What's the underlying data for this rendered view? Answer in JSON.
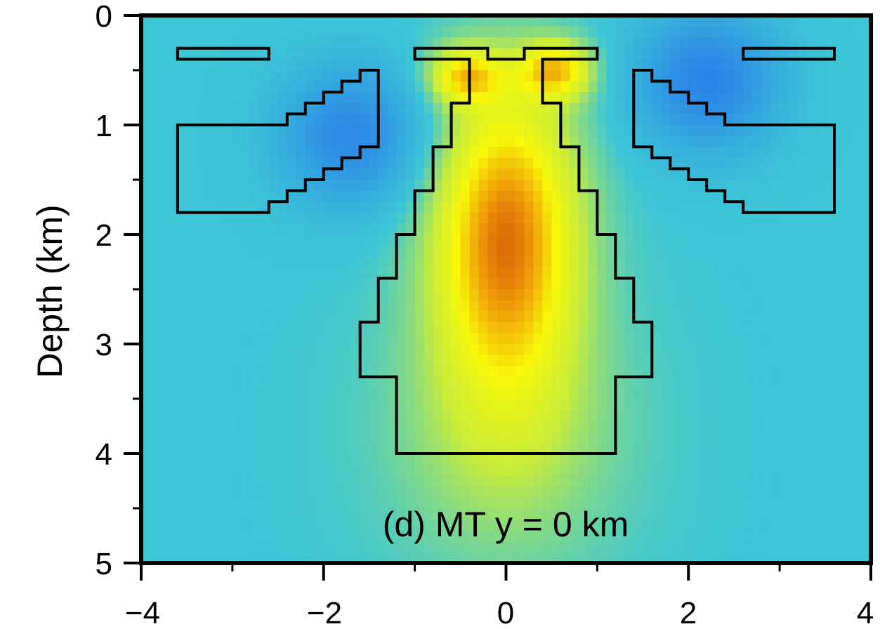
{
  "chart_data": {
    "type": "heatmap",
    "title": "",
    "annotation": "(d) MT y = 0 km",
    "xlabel": "",
    "ylabel": "Depth (km)",
    "xlim": [
      -4,
      4
    ],
    "ylim": [
      0,
      5
    ],
    "y_inverted": true,
    "x_ticks": [
      -4,
      -2,
      0,
      2,
      4
    ],
    "x_tick_labels": [
      "−4",
      "−2",
      "0",
      "2",
      "4"
    ],
    "y_ticks": [
      0,
      1,
      2,
      3,
      4,
      5
    ],
    "y_tick_labels": [
      "0",
      "1",
      "2",
      "3",
      "4",
      "5"
    ],
    "grid": false,
    "colors": {
      "background": "#3cc6d6",
      "low": "#2b84e8",
      "mid": "#c8ec3a",
      "high_yellow": "#f8f808",
      "high_orange": "#ef9a08",
      "peak": "#c84208",
      "outline": "#000000"
    },
    "anomalies": [
      {
        "name": "central-conductor",
        "x": 0.0,
        "y": 2.0,
        "sx": 0.55,
        "sy": 0.95,
        "value": 0.85
      },
      {
        "name": "shallow-left",
        "x": -0.45,
        "y": 0.55,
        "sx": 0.28,
        "sy": 0.18,
        "value": 0.55
      },
      {
        "name": "shallow-right",
        "x": 0.55,
        "y": 0.5,
        "sx": 0.28,
        "sy": 0.18,
        "value": 0.6
      },
      {
        "name": "deep-halo",
        "x": 0.0,
        "y": 3.8,
        "sx": 0.9,
        "sy": 0.9,
        "value": 0.25
      },
      {
        "name": "resistor-left",
        "x": -1.7,
        "y": 1.1,
        "sx": 0.55,
        "sy": 0.45,
        "value": -0.55
      },
      {
        "name": "resistor-right",
        "x": 2.2,
        "y": 0.6,
        "sx": 0.55,
        "sy": 0.45,
        "value": -0.6
      }
    ],
    "model_outlines": [
      {
        "name": "left-top-bar",
        "points": [
          [
            -3.6,
            0.3
          ],
          [
            -2.6,
            0.3
          ],
          [
            -2.6,
            0.4
          ],
          [
            -3.6,
            0.4
          ]
        ]
      },
      {
        "name": "right-top-bar",
        "points": [
          [
            2.6,
            0.3
          ],
          [
            3.6,
            0.3
          ],
          [
            3.6,
            0.4
          ],
          [
            2.6,
            0.4
          ]
        ]
      },
      {
        "name": "left-resistor",
        "points": [
          [
            -3.6,
            1.0
          ],
          [
            -2.4,
            1.0
          ],
          [
            -2.4,
            0.9
          ],
          [
            -2.2,
            0.9
          ],
          [
            -2.2,
            0.8
          ],
          [
            -2.0,
            0.8
          ],
          [
            -2.0,
            0.7
          ],
          [
            -1.8,
            0.7
          ],
          [
            -1.8,
            0.6
          ],
          [
            -1.6,
            0.6
          ],
          [
            -1.6,
            0.5
          ],
          [
            -1.4,
            0.5
          ],
          [
            -1.4,
            1.2
          ],
          [
            -1.6,
            1.2
          ],
          [
            -1.6,
            1.3
          ],
          [
            -1.8,
            1.3
          ],
          [
            -1.8,
            1.4
          ],
          [
            -2.0,
            1.4
          ],
          [
            -2.0,
            1.5
          ],
          [
            -2.2,
            1.5
          ],
          [
            -2.2,
            1.6
          ],
          [
            -2.4,
            1.6
          ],
          [
            -2.4,
            1.7
          ],
          [
            -2.6,
            1.7
          ],
          [
            -2.6,
            1.8
          ],
          [
            -3.6,
            1.8
          ]
        ]
      },
      {
        "name": "right-resistor",
        "points": [
          [
            1.4,
            0.5
          ],
          [
            1.6,
            0.5
          ],
          [
            1.6,
            0.6
          ],
          [
            1.8,
            0.6
          ],
          [
            1.8,
            0.7
          ],
          [
            2.0,
            0.7
          ],
          [
            2.0,
            0.8
          ],
          [
            2.2,
            0.8
          ],
          [
            2.2,
            0.9
          ],
          [
            2.4,
            0.9
          ],
          [
            2.4,
            1.0
          ],
          [
            3.6,
            1.0
          ],
          [
            3.6,
            1.8
          ],
          [
            2.6,
            1.8
          ],
          [
            2.6,
            1.7
          ],
          [
            2.4,
            1.7
          ],
          [
            2.4,
            1.6
          ],
          [
            2.2,
            1.6
          ],
          [
            2.2,
            1.5
          ],
          [
            2.0,
            1.5
          ],
          [
            2.0,
            1.4
          ],
          [
            1.8,
            1.4
          ],
          [
            1.8,
            1.3
          ],
          [
            1.6,
            1.3
          ],
          [
            1.6,
            1.2
          ],
          [
            1.4,
            1.2
          ]
        ]
      },
      {
        "name": "central-conductor",
        "points": [
          [
            -1.0,
            0.3
          ],
          [
            -0.2,
            0.3
          ],
          [
            -0.2,
            0.4
          ],
          [
            0.2,
            0.4
          ],
          [
            0.2,
            0.3
          ],
          [
            1.0,
            0.3
          ],
          [
            1.0,
            0.4
          ],
          [
            0.4,
            0.4
          ],
          [
            0.4,
            0.8
          ],
          [
            0.6,
            0.8
          ],
          [
            0.6,
            1.2
          ],
          [
            0.8,
            1.2
          ],
          [
            0.8,
            1.6
          ],
          [
            1.0,
            1.6
          ],
          [
            1.0,
            2.0
          ],
          [
            1.2,
            2.0
          ],
          [
            1.2,
            2.4
          ],
          [
            1.4,
            2.4
          ],
          [
            1.4,
            2.8
          ],
          [
            1.6,
            2.8
          ],
          [
            1.6,
            3.3
          ],
          [
            1.2,
            3.3
          ],
          [
            1.2,
            4.0
          ],
          [
            -1.2,
            4.0
          ],
          [
            -1.2,
            3.3
          ],
          [
            -1.6,
            3.3
          ],
          [
            -1.6,
            2.8
          ],
          [
            -1.4,
            2.8
          ],
          [
            -1.4,
            2.4
          ],
          [
            -1.2,
            2.4
          ],
          [
            -1.2,
            2.0
          ],
          [
            -1.0,
            2.0
          ],
          [
            -1.0,
            1.6
          ],
          [
            -0.8,
            1.6
          ],
          [
            -0.8,
            1.2
          ],
          [
            -0.6,
            1.2
          ],
          [
            -0.6,
            0.8
          ],
          [
            -0.4,
            0.8
          ],
          [
            -0.4,
            0.4
          ],
          [
            -1.0,
            0.4
          ]
        ]
      }
    ]
  }
}
